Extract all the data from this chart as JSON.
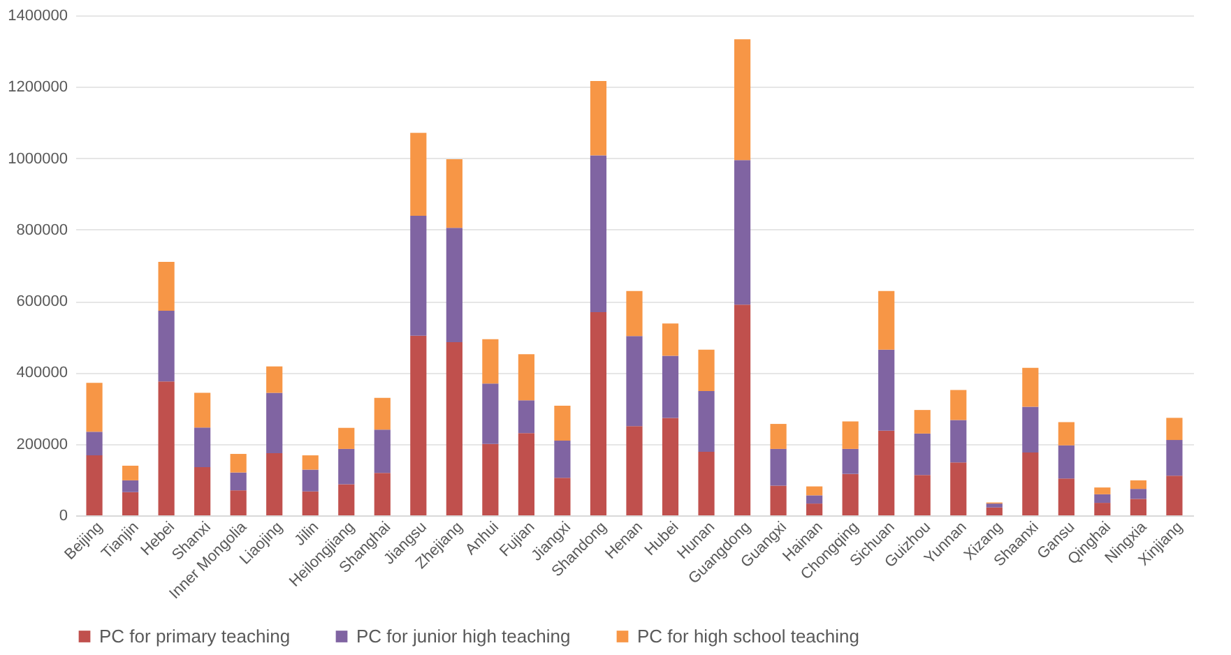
{
  "chart_data": {
    "type": "bar",
    "stacked": true,
    "categories": [
      "Beijing",
      "Tianjin",
      "Hebei",
      "Shanxi",
      "Inner Mongolia",
      "Liaojing",
      "Jilin",
      "Heilongjiang",
      "Shanghai",
      "Jiangsu",
      "Zhejiang",
      "Anhui",
      "Fujian",
      "Jiangxi",
      "Shandong",
      "Henan",
      "Hubei",
      "Hunan",
      "Guangdong",
      "Guangxi",
      "Hainan",
      "Chongqing",
      "Sichuan",
      "Guizhou",
      "Yunnan",
      "Xizang",
      "Shaanxi",
      "Gansu",
      "Qinghai",
      "Ningxia",
      "Xinjiang"
    ],
    "series": [
      {
        "name": "PC for primary teaching",
        "color": "#c0504d",
        "values": [
          168000,
          65000,
          375000,
          135000,
          70000,
          174000,
          67000,
          87000,
          119000,
          503000,
          485000,
          200000,
          230000,
          105000,
          569000,
          250000,
          273000,
          178000,
          590000,
          83000,
          33000,
          116000,
          237000,
          113000,
          148000,
          22000,
          176000,
          103000,
          35000,
          46000,
          111000
        ]
      },
      {
        "name": "PC for junior high teaching",
        "color": "#8064a2",
        "values": [
          66000,
          33000,
          198000,
          111000,
          50000,
          169000,
          61000,
          99000,
          121000,
          336000,
          320000,
          169000,
          92000,
          104000,
          439000,
          252000,
          174000,
          170000,
          405000,
          103000,
          23000,
          70000,
          227000,
          116000,
          119000,
          11000,
          128000,
          93000,
          24000,
          28000,
          100000
        ]
      },
      {
        "name": "PC for high school teaching",
        "color": "#f79646",
        "values": [
          137000,
          41000,
          137000,
          97000,
          52000,
          74000,
          40000,
          59000,
          89000,
          232000,
          192000,
          124000,
          129000,
          98000,
          208000,
          126000,
          90000,
          116000,
          338000,
          70000,
          25000,
          77000,
          164000,
          66000,
          84000,
          3000,
          109000,
          65000,
          19000,
          24000,
          62000
        ]
      }
    ],
    "ylim": [
      0,
      1400000
    ],
    "yticks": [
      0,
      200000,
      400000,
      600000,
      800000,
      1000000,
      1200000,
      1400000
    ],
    "grid": "y",
    "legend": "bottom"
  }
}
